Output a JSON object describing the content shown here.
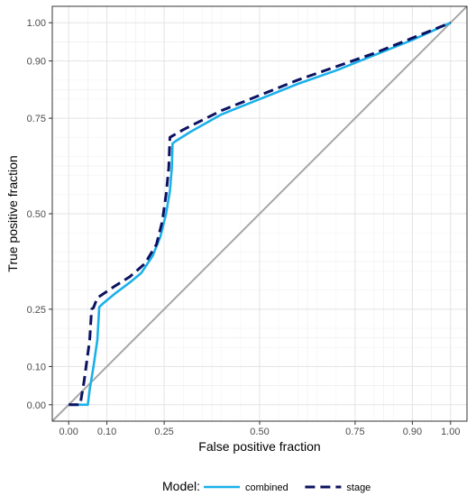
{
  "chart_data": {
    "type": "line",
    "xlabel": "False positive fraction",
    "ylabel": "True positive fraction",
    "xlim": [
      0,
      1
    ],
    "ylim": [
      0,
      1
    ],
    "x_ticks": [
      0.0,
      0.1,
      0.25,
      0.5,
      0.75,
      0.9,
      1.0
    ],
    "x_tick_labels": [
      "0.00",
      "0.10",
      "0.25",
      "0.50",
      "0.75",
      "0.90",
      "1.00"
    ],
    "y_ticks": [
      0.0,
      0.1,
      0.25,
      0.5,
      0.75,
      0.9,
      1.0
    ],
    "y_tick_labels": [
      "0.00",
      "0.10",
      "0.25",
      "0.50",
      "0.75",
      "0.90",
      "1.00"
    ],
    "grid": true,
    "legend": {
      "title": "Model:",
      "position": "bottom"
    },
    "reference_line": {
      "x": [
        0,
        1
      ],
      "y": [
        0,
        1
      ],
      "color": "#a6a6a6"
    },
    "series": [
      {
        "name": "combined",
        "style": "solid",
        "color": "#1ab0ea",
        "x": [
          0.0,
          0.05,
          0.055,
          0.065,
          0.075,
          0.08,
          0.09,
          0.12,
          0.16,
          0.19,
          0.22,
          0.24,
          0.255,
          0.265,
          0.27,
          0.272,
          0.28,
          0.32,
          0.4,
          0.5,
          0.6,
          0.7,
          0.8,
          0.9,
          1.0
        ],
        "y": [
          0.0,
          0.0,
          0.04,
          0.1,
          0.17,
          0.256,
          0.265,
          0.29,
          0.32,
          0.345,
          0.39,
          0.44,
          0.5,
          0.56,
          0.62,
          0.684,
          0.69,
          0.715,
          0.76,
          0.8,
          0.84,
          0.875,
          0.915,
          0.955,
          1.0
        ]
      },
      {
        "name": "stage",
        "style": "dashed",
        "color": "#0c1260",
        "x": [
          0.0,
          0.03,
          0.04,
          0.055,
          0.06,
          0.065,
          0.075,
          0.12,
          0.16,
          0.2,
          0.23,
          0.245,
          0.255,
          0.262,
          0.265,
          0.3,
          0.4,
          0.5,
          0.6,
          0.7,
          0.8,
          0.9,
          1.0
        ],
        "y": [
          0.0,
          0.0,
          0.06,
          0.17,
          0.25,
          0.254,
          0.28,
          0.31,
          0.335,
          0.37,
          0.42,
          0.48,
          0.55,
          0.62,
          0.7,
          0.72,
          0.77,
          0.81,
          0.85,
          0.885,
          0.92,
          0.96,
          1.0
        ]
      }
    ]
  }
}
